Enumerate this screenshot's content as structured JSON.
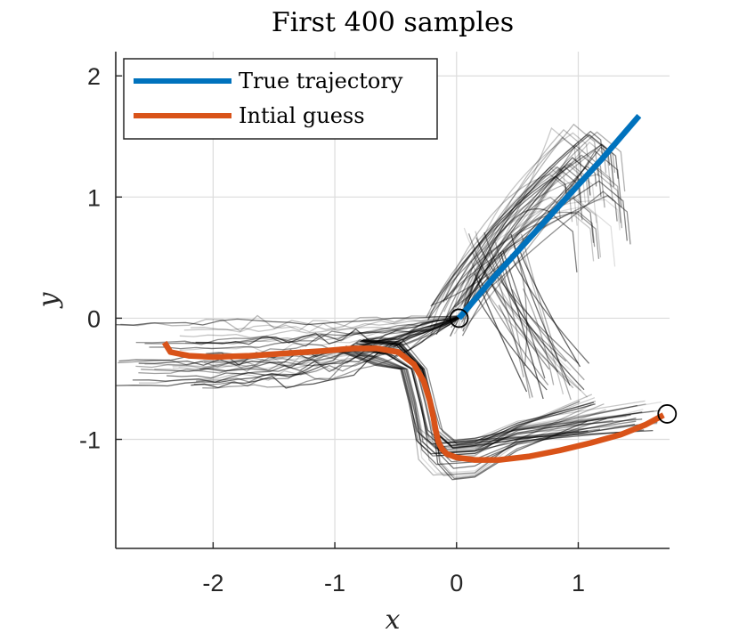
{
  "chart_data": {
    "type": "line",
    "title": "First 400 samples",
    "xlabel": "x",
    "ylabel": "y",
    "xlim": [
      -2.8,
      1.75
    ],
    "ylim": [
      -1.9,
      2.2
    ],
    "xticks": [
      -2,
      -1,
      0,
      1
    ],
    "yticks": [
      -1,
      0,
      1,
      2
    ],
    "xtick_labels": [
      "-2",
      "-1",
      "0",
      "1"
    ],
    "ytick_labels": [
      "-1",
      "0",
      "1",
      "2"
    ],
    "grid": true,
    "legend_position": "top-left",
    "series": [
      {
        "name": "True trajectory",
        "color": "#0072BD",
        "x": [
          0.02,
          0.3,
          0.6,
          0.9,
          1.2,
          1.5
        ],
        "y": [
          0.0,
          0.33,
          0.66,
          0.99,
          1.32,
          1.67
        ]
      },
      {
        "name": "Intial guess",
        "color": "#D95319",
        "x": [
          -2.4,
          -2.35,
          -2.2,
          -2.0,
          -1.7,
          -1.4,
          -1.1,
          -0.85,
          -0.65,
          -0.48,
          -0.35,
          -0.27,
          -0.22,
          -0.19,
          -0.17,
          -0.15,
          -0.12,
          -0.08,
          0.0,
          0.15,
          0.35,
          0.6,
          0.85,
          1.1,
          1.35,
          1.55,
          1.7
        ],
        "y": [
          -0.2,
          -0.28,
          -0.31,
          -0.32,
          -0.31,
          -0.29,
          -0.27,
          -0.25,
          -0.25,
          -0.28,
          -0.38,
          -0.52,
          -0.68,
          -0.82,
          -0.93,
          -1.02,
          -1.08,
          -1.12,
          -1.15,
          -1.17,
          -1.17,
          -1.14,
          -1.09,
          -1.03,
          -0.96,
          -0.88,
          -0.8
        ]
      }
    ],
    "markers": [
      {
        "name": "start-point",
        "x": 0.02,
        "y": 0.0
      },
      {
        "name": "end-point",
        "x": 1.73,
        "y": -0.79
      }
    ],
    "samples_color": "#000000"
  }
}
